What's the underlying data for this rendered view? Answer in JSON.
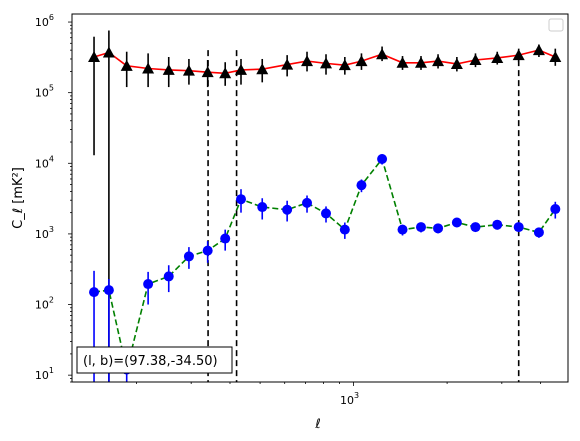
{
  "chart_data": {
    "type": "scatter",
    "xlabel": "ℓ",
    "ylabel": "C_ℓ  [mK²]",
    "xscale": "log",
    "yscale": "log",
    "xlim": [
      124,
      4900
    ],
    "ylim": [
      8,
      1300000
    ],
    "x_ticks": [
      {
        "value": 1000,
        "base": "10",
        "exp": "3"
      }
    ],
    "y_ticks": [
      {
        "value": 10,
        "base": "10",
        "exp": "1"
      },
      {
        "value": 100,
        "base": "10",
        "exp": "2"
      },
      {
        "value": 1000,
        "base": "10",
        "exp": "3"
      },
      {
        "value": 10000,
        "base": "10",
        "exp": "4"
      },
      {
        "value": 100000,
        "base": "10",
        "exp": "5"
      },
      {
        "value": 1000000,
        "base": "10",
        "exp": "6"
      }
    ],
    "legend_position": "top-right",
    "vlines": [
      340,
      420,
      3400
    ],
    "annotation": "(l, b)=(97.38,-34.50)",
    "series": [
      {
        "color": "#000000",
        "line_color": "#ff0000",
        "line_style": "solid",
        "marker": "triangle",
        "points": [
          {
            "x": 146,
            "y": 320000,
            "ylo": 13000,
            "yhi": 620000
          },
          {
            "x": 163,
            "y": 370000,
            "ylo": 8,
            "yhi": 760000
          },
          {
            "x": 186,
            "y": 240000,
            "ylo": 120000,
            "yhi": 380000
          },
          {
            "x": 218,
            "y": 220000,
            "ylo": 120000,
            "yhi": 360000
          },
          {
            "x": 254,
            "y": 210000,
            "ylo": 120000,
            "yhi": 320000
          },
          {
            "x": 295,
            "y": 205000,
            "ylo": 130000,
            "yhi": 300000
          },
          {
            "x": 339,
            "y": 195000,
            "ylo": 120000,
            "yhi": 290000
          },
          {
            "x": 386,
            "y": 188000,
            "ylo": 125000,
            "yhi": 270000
          },
          {
            "x": 434,
            "y": 210000,
            "ylo": 130000,
            "yhi": 300000
          },
          {
            "x": 508,
            "y": 215000,
            "ylo": 140000,
            "yhi": 300000
          },
          {
            "x": 611,
            "y": 250000,
            "ylo": 170000,
            "yhi": 340000
          },
          {
            "x": 708,
            "y": 280000,
            "ylo": 200000,
            "yhi": 380000
          },
          {
            "x": 815,
            "y": 260000,
            "ylo": 180000,
            "yhi": 350000
          },
          {
            "x": 937,
            "y": 245000,
            "ylo": 180000,
            "yhi": 320000
          },
          {
            "x": 1060,
            "y": 280000,
            "ylo": 210000,
            "yhi": 360000
          },
          {
            "x": 1235,
            "y": 350000,
            "ylo": 280000,
            "yhi": 450000
          },
          {
            "x": 1437,
            "y": 265000,
            "ylo": 210000,
            "yhi": 330000
          },
          {
            "x": 1648,
            "y": 265000,
            "ylo": 210000,
            "yhi": 330000
          },
          {
            "x": 1870,
            "y": 280000,
            "ylo": 220000,
            "yhi": 350000
          },
          {
            "x": 2150,
            "y": 255000,
            "ylo": 200000,
            "yhi": 320000
          },
          {
            "x": 2468,
            "y": 290000,
            "ylo": 230000,
            "yhi": 360000
          },
          {
            "x": 2900,
            "y": 310000,
            "ylo": 250000,
            "yhi": 380000
          },
          {
            "x": 3400,
            "y": 340000,
            "ylo": 270000,
            "yhi": 420000
          },
          {
            "x": 3950,
            "y": 400000,
            "ylo": 320000,
            "yhi": 480000
          },
          {
            "x": 4460,
            "y": 320000,
            "ylo": 240000,
            "yhi": 420000
          }
        ]
      },
      {
        "color": "#0000ff",
        "line_color": "#008000",
        "line_style": "dashed",
        "marker": "circle",
        "points": [
          {
            "x": 146,
            "y": 150,
            "ylo": 8,
            "yhi": 300
          },
          {
            "x": 163,
            "y": 160,
            "ylo": 8,
            "yhi": 230
          },
          {
            "x": 186,
            "y": 12,
            "ylo": 8,
            "yhi": 17
          },
          {
            "x": 218,
            "y": 195,
            "ylo": 100,
            "yhi": 290
          },
          {
            "x": 254,
            "y": 250,
            "ylo": 150,
            "yhi": 360
          },
          {
            "x": 295,
            "y": 480,
            "ylo": 320,
            "yhi": 650
          },
          {
            "x": 339,
            "y": 580,
            "ylo": 390,
            "yhi": 790
          },
          {
            "x": 386,
            "y": 860,
            "ylo": 580,
            "yhi": 1150
          },
          {
            "x": 434,
            "y": 3100,
            "ylo": 2000,
            "yhi": 4300
          },
          {
            "x": 508,
            "y": 2400,
            "ylo": 1600,
            "yhi": 3200
          },
          {
            "x": 611,
            "y": 2200,
            "ylo": 1500,
            "yhi": 2950
          },
          {
            "x": 708,
            "y": 2750,
            "ylo": 2000,
            "yhi": 3500
          },
          {
            "x": 815,
            "y": 1950,
            "ylo": 1450,
            "yhi": 2450
          },
          {
            "x": 937,
            "y": 1150,
            "ylo": 850,
            "yhi": 1450
          },
          {
            "x": 1060,
            "y": 4900,
            "ylo": 3900,
            "yhi": 5900
          },
          {
            "x": 1235,
            "y": 11500,
            "ylo": 9600,
            "yhi": 13400
          },
          {
            "x": 1437,
            "y": 1150,
            "ylo": 950,
            "yhi": 1350
          },
          {
            "x": 1648,
            "y": 1250,
            "ylo": 1050,
            "yhi": 1450
          },
          {
            "x": 1870,
            "y": 1200,
            "ylo": 1020,
            "yhi": 1380
          },
          {
            "x": 2150,
            "y": 1450,
            "ylo": 1250,
            "yhi": 1650
          },
          {
            "x": 2468,
            "y": 1250,
            "ylo": 1080,
            "yhi": 1420
          },
          {
            "x": 2900,
            "y": 1350,
            "ylo": 1150,
            "yhi": 1550
          },
          {
            "x": 3400,
            "y": 1250,
            "ylo": 1080,
            "yhi": 1420
          },
          {
            "x": 3950,
            "y": 1050,
            "ylo": 880,
            "yhi": 1220
          },
          {
            "x": 4460,
            "y": 2250,
            "ylo": 1650,
            "yhi": 2850
          }
        ]
      }
    ]
  }
}
